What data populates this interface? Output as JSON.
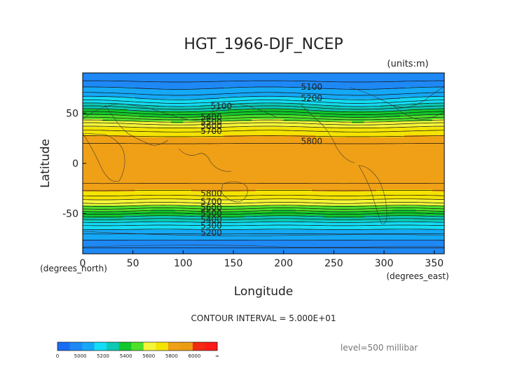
{
  "chart_data": {
    "type": "heatmap",
    "title": "HGT_1966-DJF_NCEP",
    "units_label": "(units:m)",
    "xlabel": "Longitude",
    "ylabel": "Latitude",
    "x_unit_label": "(degrees_east)",
    "y_unit_label": "(degrees_north)",
    "xlim": [
      0,
      360
    ],
    "ylim": [
      -90,
      90
    ],
    "x_ticks": [
      0,
      50,
      100,
      150,
      200,
      250,
      300,
      350
    ],
    "y_ticks": [
      50,
      0,
      -50
    ],
    "contour_interval_text": "CONTOUR INTERVAL = 5.000E+01",
    "level_text": "level=500 millibar",
    "colorbar_ticks": [
      "0",
      "5000",
      "5200",
      "5400",
      "5600",
      "5800",
      "6000",
      "∞"
    ],
    "colorbar_bins": [
      {
        "from": 0,
        "to": 5000,
        "color": "#1a6cf2"
      },
      {
        "from": 5000,
        "to": 5100,
        "color": "#1e88f5"
      },
      {
        "from": 5100,
        "to": 5200,
        "color": "#15a8f7"
      },
      {
        "from": 5200,
        "to": 5300,
        "color": "#14dcf4"
      },
      {
        "from": 5300,
        "to": 5400,
        "color": "#0dc8b4"
      },
      {
        "from": 5400,
        "to": 5500,
        "color": "#12c72c"
      },
      {
        "from": 5500,
        "to": 5600,
        "color": "#4ee02a"
      },
      {
        "from": 5600,
        "to": 5700,
        "color": "#f5f53a"
      },
      {
        "from": 5700,
        "to": 5800,
        "color": "#f4e400"
      },
      {
        "from": 5800,
        "to": 5900,
        "color": "#f0a016"
      },
      {
        "from": 5900,
        "to": 6000,
        "color": "#eb9d12"
      },
      {
        "from": 6000,
        "to": 6100,
        "color": "#f32a12"
      },
      {
        "from": 6100,
        "to": 99999,
        "color": "#ff1a1a"
      }
    ],
    "contour_labels": [
      {
        "text": "5100",
        "lon": 228,
        "lat": 76
      },
      {
        "text": "5200",
        "lon": 228,
        "lat": 65
      },
      {
        "text": "5100",
        "lon": 138,
        "lat": 57
      },
      {
        "text": "5400",
        "lon": 128,
        "lat": 46
      },
      {
        "text": "5500",
        "lon": 128,
        "lat": 41
      },
      {
        "text": "5600",
        "lon": 128,
        "lat": 37
      },
      {
        "text": "5700",
        "lon": 128,
        "lat": 32
      },
      {
        "text": "5800",
        "lon": 228,
        "lat": 22
      },
      {
        "text": "5800",
        "lon": 128,
        "lat": -30
      },
      {
        "text": "5700",
        "lon": 128,
        "lat": -38
      },
      {
        "text": "5600",
        "lon": 128,
        "lat": -44
      },
      {
        "text": "5500",
        "lon": 128,
        "lat": -50
      },
      {
        "text": "5400",
        "lon": 128,
        "lat": -56
      },
      {
        "text": "5300",
        "lon": 128,
        "lat": -62
      },
      {
        "text": "5200",
        "lon": 128,
        "lat": -69
      }
    ]
  }
}
